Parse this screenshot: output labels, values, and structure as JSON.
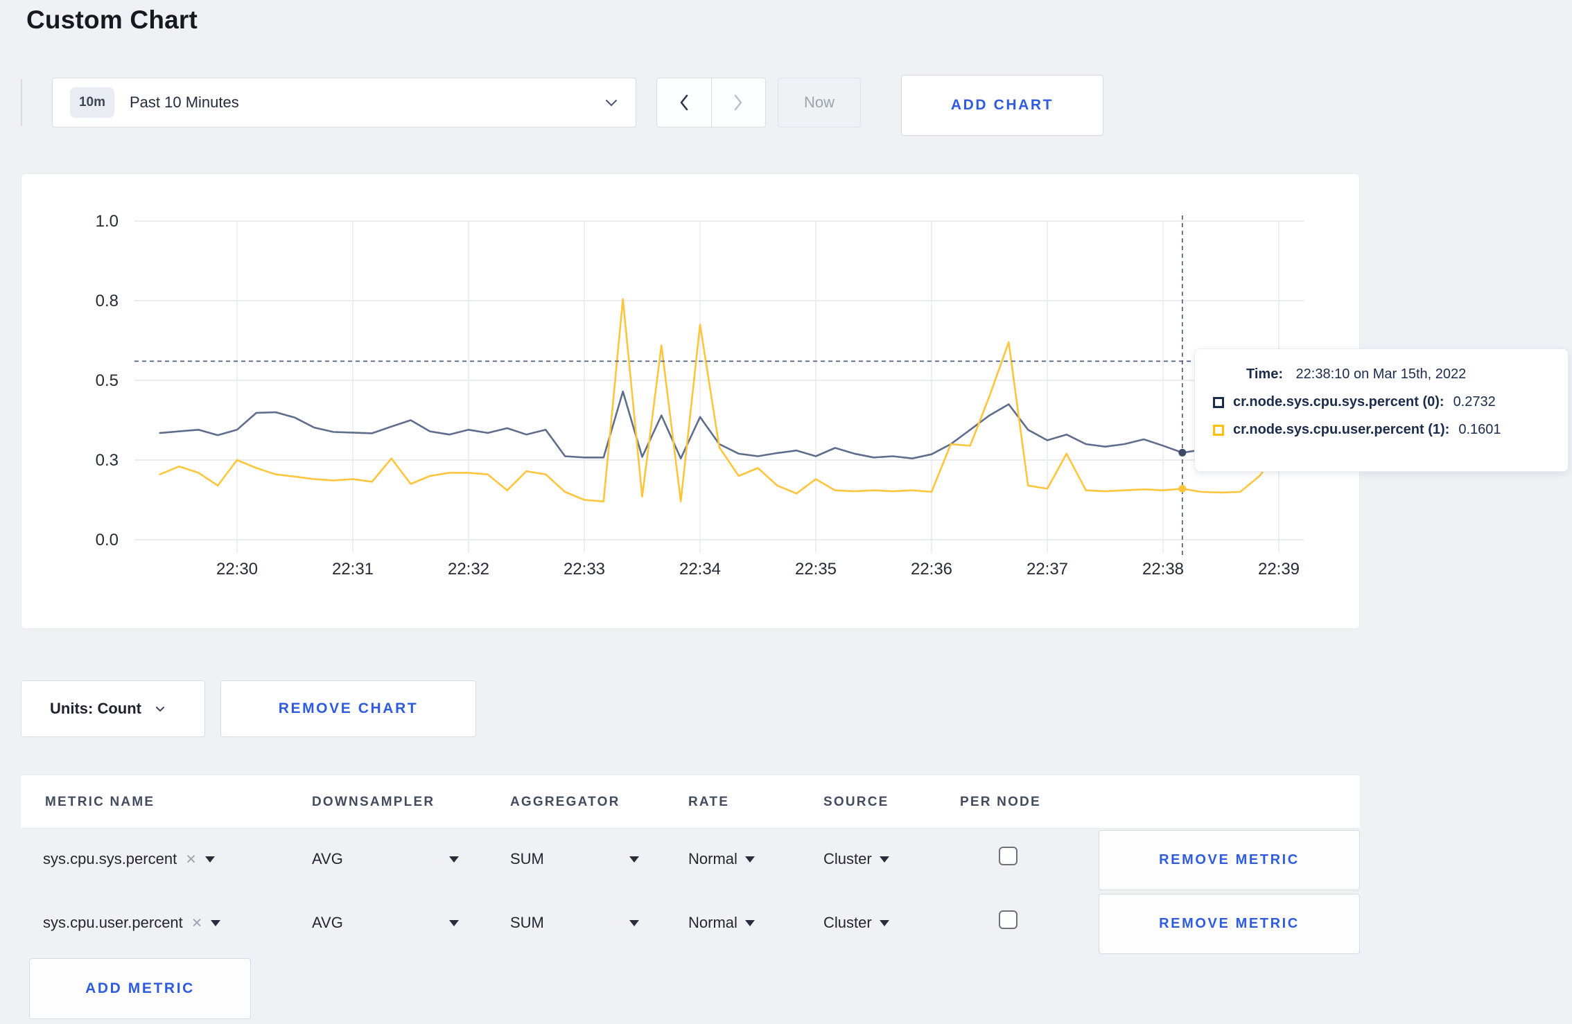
{
  "page": {
    "title": "Custom Chart"
  },
  "toolbar": {
    "range_badge": "10m",
    "range_label": "Past 10 Minutes",
    "now_label": "Now",
    "add_chart_label": "ADD CHART"
  },
  "chart_data": {
    "type": "line",
    "title": "",
    "xlabel": "",
    "ylabel": "",
    "ylim": [
      0,
      1
    ],
    "grid": true,
    "legend_position": "tooltip",
    "x_ticks": [
      "22:30",
      "22:31",
      "22:32",
      "22:33",
      "22:34",
      "22:35",
      "22:36",
      "22:37",
      "22:38",
      "22:39"
    ],
    "y_tick_labels": [
      "0.0",
      "0.3",
      "0.5",
      "0.8",
      "1.0"
    ],
    "y_tick_values": [
      0,
      0.25,
      0.5,
      0.75,
      1.0
    ],
    "x_start_offset_seconds": -40,
    "x_step_seconds": 10,
    "series": [
      {
        "name": "cr.node.sys.cpu.sys.percent (0)",
        "color": "#5e6d8c",
        "dot_color": "#3c4a66",
        "values": [
          0.335,
          0.34,
          0.345,
          0.328,
          0.345,
          0.398,
          0.4,
          0.383,
          0.352,
          0.338,
          0.336,
          0.334,
          0.355,
          0.375,
          0.34,
          0.33,
          0.345,
          0.335,
          0.35,
          0.33,
          0.345,
          0.262,
          0.258,
          0.258,
          0.465,
          0.26,
          0.39,
          0.255,
          0.385,
          0.3,
          0.27,
          0.262,
          0.272,
          0.28,
          0.262,
          0.288,
          0.27,
          0.258,
          0.262,
          0.255,
          0.268,
          0.3,
          0.345,
          0.39,
          0.425,
          0.345,
          0.312,
          0.33,
          0.3,
          0.292,
          0.3,
          0.315,
          0.295,
          0.2732,
          0.282,
          0.295,
          0.31,
          0.33,
          0.305,
          0.295,
          0.315
        ]
      },
      {
        "name": "cr.node.sys.cpu.user.percent (1)",
        "color": "#ffc53d",
        "dot_color": "#ffc53d",
        "values": [
          0.205,
          0.23,
          0.21,
          0.17,
          0.25,
          0.225,
          0.205,
          0.198,
          0.19,
          0.186,
          0.19,
          0.182,
          0.255,
          0.175,
          0.2,
          0.21,
          0.21,
          0.205,
          0.155,
          0.215,
          0.205,
          0.15,
          0.125,
          0.12,
          0.755,
          0.135,
          0.61,
          0.12,
          0.675,
          0.29,
          0.2,
          0.225,
          0.17,
          0.145,
          0.19,
          0.155,
          0.152,
          0.155,
          0.152,
          0.155,
          0.15,
          0.3,
          0.295,
          0.45,
          0.62,
          0.17,
          0.16,
          0.27,
          0.155,
          0.152,
          0.155,
          0.158,
          0.155,
          0.1601,
          0.15,
          0.148,
          0.15,
          0.2,
          0.28,
          0.22,
          0.27
        ]
      }
    ],
    "crosshair": {
      "time": "22:38:10",
      "seconds_from_2230": 490,
      "y_value": 0.56
    },
    "hover_values": [
      0.2732,
      0.1601
    ]
  },
  "tooltip": {
    "time_label": "Time:",
    "time_value": "22:38:10 on Mar 15th, 2022",
    "rows": [
      {
        "label": "cr.node.sys.cpu.sys.percent (0):",
        "value": "0.2732",
        "swatch": "#1b2b4c"
      },
      {
        "label": "cr.node.sys.cpu.user.percent (1):",
        "value": "0.1601",
        "swatch": "#ffc107"
      }
    ]
  },
  "units_row": {
    "units_label": "Units: Count",
    "remove_chart_label": "REMOVE CHART"
  },
  "metrics_table": {
    "headers": [
      "METRIC NAME",
      "DOWNSAMPLER",
      "AGGREGATOR",
      "RATE",
      "SOURCE",
      "PER NODE"
    ],
    "rows": [
      {
        "metric_name": "sys.cpu.sys.percent",
        "downsampler": "AVG",
        "aggregator": "SUM",
        "rate": "Normal",
        "source": "Cluster",
        "per_node_checked": false,
        "remove_label": "REMOVE METRIC"
      },
      {
        "metric_name": "sys.cpu.user.percent",
        "downsampler": "AVG",
        "aggregator": "SUM",
        "rate": "Normal",
        "source": "Cluster",
        "per_node_checked": false,
        "remove_label": "REMOVE METRIC"
      }
    ],
    "add_metric_label": "ADD METRIC"
  }
}
